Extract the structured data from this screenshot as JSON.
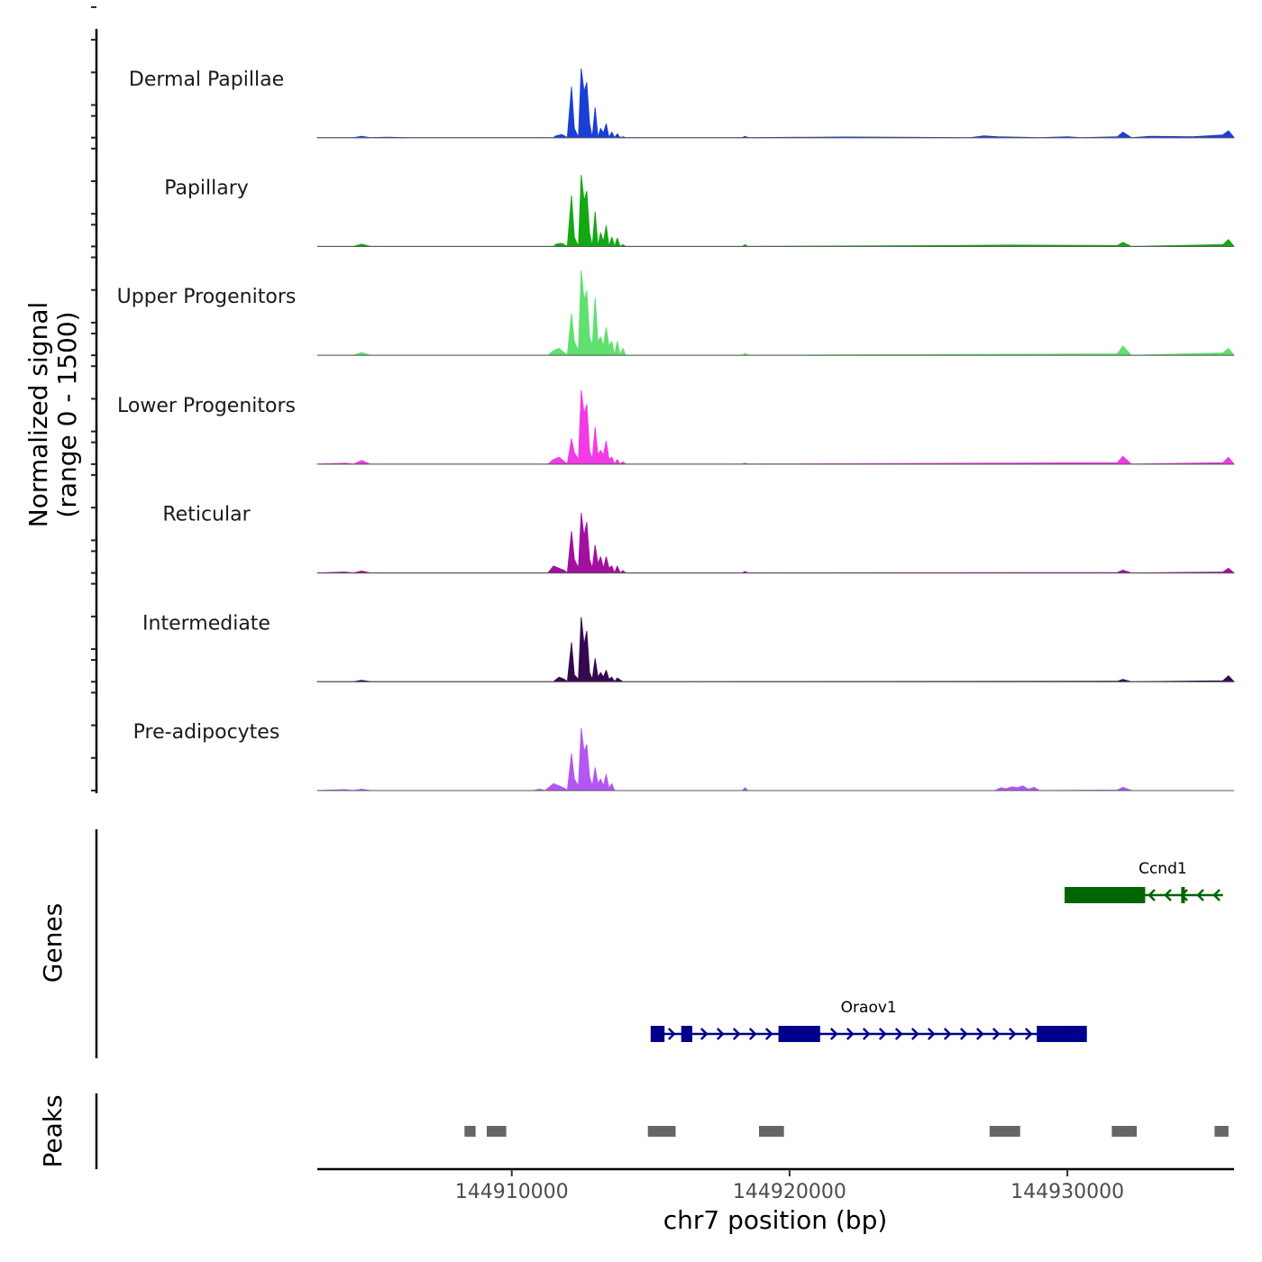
{
  "chart_data": {
    "type": "area",
    "title": "",
    "ylabel_line1": "Normalized signal",
    "ylabel_line2": "(range 0 - 1500)",
    "yrange": [
      0,
      1500
    ],
    "xlabel": "chr7 position (bp)",
    "xlim": [
      144903000,
      144936000
    ],
    "xticks": [
      144910000,
      144920000,
      144930000
    ],
    "tick_labels": [
      "144910000",
      "144920000",
      "144930000"
    ],
    "tracks": [
      {
        "name": "Dermal Papillae",
        "color": "#1a3fd6",
        "x": [
          144903000,
          144904300,
          144904600,
          144904900,
          144905500,
          144906200,
          144911500,
          144911600,
          144911800,
          144912000,
          144912150,
          144912250,
          144912400,
          144912500,
          144912600,
          144912700,
          144912800,
          144912900,
          144913000,
          144913100,
          144913200,
          144913300,
          144913400,
          144913500,
          144913600,
          144913700,
          144913800,
          144913900,
          144914000,
          144914100,
          144914400,
          144915000,
          144918300,
          144918400,
          144918500,
          144922000,
          144926500,
          144927000,
          144927500,
          144929000,
          144930000,
          144930500,
          144931800,
          144932000,
          144932300,
          144933000,
          144934500,
          144935600,
          144935800,
          144936000
        ],
        "y": [
          0,
          0,
          30,
          0,
          10,
          0,
          0,
          40,
          70,
          0,
          1100,
          200,
          0,
          1500,
          1000,
          1200,
          300,
          0,
          650,
          0,
          200,
          100,
          300,
          0,
          120,
          0,
          80,
          0,
          20,
          0,
          0,
          0,
          0,
          30,
          0,
          15,
          0,
          40,
          20,
          0,
          20,
          0,
          20,
          120,
          0,
          30,
          20,
          60,
          150,
          0
        ]
      },
      {
        "name": "Papillary",
        "color": "#14a814",
        "x": [
          144903000,
          144904300,
          144904600,
          144904900,
          144906200,
          144911500,
          144911600,
          144911800,
          144912000,
          144912150,
          144912250,
          144912400,
          144912500,
          144912600,
          144912700,
          144912800,
          144912900,
          144913000,
          144913100,
          144913200,
          144913300,
          144913400,
          144913500,
          144913600,
          144913700,
          144913800,
          144913900,
          144914000,
          144914100,
          144918300,
          144918400,
          144918500,
          144926000,
          144928000,
          144931800,
          144932000,
          144932300,
          144935600,
          144935800,
          144936000
        ],
        "y": [
          0,
          0,
          50,
          0,
          0,
          0,
          50,
          70,
          0,
          1100,
          200,
          0,
          1550,
          1000,
          1200,
          300,
          0,
          750,
          0,
          300,
          100,
          450,
          0,
          200,
          0,
          180,
          0,
          40,
          0,
          0,
          40,
          0,
          20,
          30,
          20,
          90,
          0,
          40,
          150,
          0
        ]
      },
      {
        "name": "Upper Progenitors",
        "color": "#5fe06f",
        "x": [
          144903000,
          144904300,
          144904600,
          144904900,
          144911300,
          144911500,
          144911700,
          144911900,
          144912000,
          144912150,
          144912250,
          144912400,
          144912500,
          144912600,
          144912700,
          144912800,
          144912900,
          144913000,
          144913100,
          144913200,
          144913300,
          144913400,
          144913500,
          144913600,
          144913700,
          144913800,
          144913900,
          144914000,
          144914100,
          144918300,
          144918400,
          144918500,
          144931800,
          144932000,
          144932300,
          144935600,
          144935800,
          144936000
        ],
        "y": [
          0,
          0,
          60,
          0,
          0,
          100,
          150,
          50,
          0,
          900,
          300,
          100,
          1850,
          1200,
          1400,
          400,
          200,
          1250,
          300,
          400,
          200,
          600,
          200,
          300,
          0,
          300,
          0,
          150,
          0,
          0,
          40,
          0,
          30,
          200,
          0,
          50,
          150,
          0
        ]
      },
      {
        "name": "Lower Progenitors",
        "color": "#f23be6",
        "x": [
          144903000,
          144904000,
          144904300,
          144904600,
          144904900,
          144911300,
          144911500,
          144911700,
          144911900,
          144912000,
          144912150,
          144912250,
          144912400,
          144912500,
          144912600,
          144912700,
          144912800,
          144912900,
          144913000,
          144913100,
          144913200,
          144913300,
          144913400,
          144913500,
          144913600,
          144913700,
          144913800,
          144913900,
          144914000,
          144914100,
          144918300,
          144918400,
          144918500,
          144931800,
          144932000,
          144932300,
          144935600,
          144935800,
          144936000
        ],
        "y": [
          0,
          20,
          0,
          80,
          0,
          0,
          100,
          150,
          50,
          0,
          550,
          250,
          100,
          1600,
          1100,
          1300,
          300,
          100,
          800,
          200,
          300,
          200,
          500,
          100,
          150,
          0,
          100,
          0,
          50,
          0,
          0,
          20,
          0,
          30,
          170,
          0,
          30,
          150,
          0
        ]
      },
      {
        "name": "Reticular",
        "color": "#a30f9f",
        "x": [
          144903000,
          144904000,
          144904300,
          144904600,
          144904900,
          144911300,
          144911500,
          144911700,
          144911900,
          144912000,
          144912150,
          144912250,
          144912400,
          144912500,
          144912600,
          144912700,
          144912800,
          144912900,
          144913000,
          144913100,
          144913200,
          144913300,
          144913400,
          144913500,
          144913600,
          144913700,
          144913800,
          144913900,
          144914000,
          144914100,
          144918300,
          144918400,
          144918500,
          144931800,
          144932000,
          144932300,
          144935600,
          144935800,
          144936000
        ],
        "y": [
          0,
          20,
          0,
          40,
          0,
          0,
          150,
          100,
          50,
          0,
          900,
          300,
          100,
          1300,
          800,
          1100,
          300,
          100,
          600,
          200,
          350,
          100,
          350,
          100,
          150,
          0,
          150,
          0,
          50,
          0,
          0,
          30,
          0,
          10,
          60,
          0,
          20,
          100,
          0
        ]
      },
      {
        "name": "Intermediate",
        "color": "#35094f",
        "x": [
          144903000,
          144904300,
          144904600,
          144904900,
          144911500,
          144911700,
          144911900,
          144912000,
          144912150,
          144912250,
          144912400,
          144912500,
          144912600,
          144912700,
          144912800,
          144912900,
          144913000,
          144913100,
          144913200,
          144913300,
          144913400,
          144913500,
          144913600,
          144913700,
          144913800,
          144914000,
          144914100,
          144931800,
          144932000,
          144932300,
          144935600,
          144935800,
          144936000
        ],
        "y": [
          0,
          0,
          30,
          0,
          0,
          100,
          50,
          0,
          850,
          150,
          50,
          1400,
          800,
          1100,
          200,
          50,
          500,
          100,
          200,
          100,
          250,
          50,
          100,
          0,
          80,
          0,
          0,
          10,
          50,
          0,
          20,
          130,
          0
        ]
      },
      {
        "name": "Pre-adipocytes",
        "color": "#b357f2",
        "x": [
          144903000,
          144904000,
          144904300,
          144904600,
          144904900,
          144910800,
          144911000,
          144911200,
          144911500,
          144911700,
          144911900,
          144912000,
          144912150,
          144912250,
          144912400,
          144912500,
          144912600,
          144912700,
          144912800,
          144912900,
          144913000,
          144913100,
          144913200,
          144913300,
          144913400,
          144913500,
          144913600,
          144913700,
          144914000,
          144918300,
          144918400,
          144918500,
          144927400,
          144927600,
          144927800,
          144928000,
          144928200,
          144928400,
          144928600,
          144928800,
          144929000,
          144931800,
          144932000,
          144932300,
          144936000
        ],
        "y": [
          0,
          20,
          0,
          30,
          0,
          0,
          30,
          0,
          150,
          100,
          50,
          0,
          800,
          250,
          100,
          1350,
          850,
          1000,
          300,
          100,
          500,
          150,
          250,
          100,
          350,
          50,
          150,
          0,
          0,
          0,
          60,
          0,
          0,
          60,
          40,
          80,
          60,
          100,
          30,
          70,
          0,
          10,
          70,
          0,
          0
        ]
      }
    ],
    "genes": [
      {
        "name": "Ccnd1",
        "strand": "-",
        "color": "#006400",
        "start": 144929900,
        "end": 144935600,
        "exons": [
          [
            144929900,
            144932800
          ],
          [
            144934100,
            144934200
          ]
        ]
      },
      {
        "name": "Oraov1",
        "strand": "+",
        "color": "#00008b",
        "start": 144915000,
        "end": 144930700,
        "exons": [
          [
            144915000,
            144915500
          ],
          [
            144916100,
            144916500
          ],
          [
            144919600,
            144921100
          ],
          [
            144928900,
            144930700
          ]
        ]
      }
    ],
    "gene_track_label": "Genes",
    "peaks_track_label": "Peaks",
    "peaks": [
      [
        144908300,
        144908700
      ],
      [
        144909100,
        144909800
      ],
      [
        144914900,
        144915900
      ],
      [
        144918900,
        144919800
      ],
      [
        144927200,
        144928300
      ],
      [
        144931600,
        144932500
      ],
      [
        144935300,
        144935800
      ]
    ]
  }
}
